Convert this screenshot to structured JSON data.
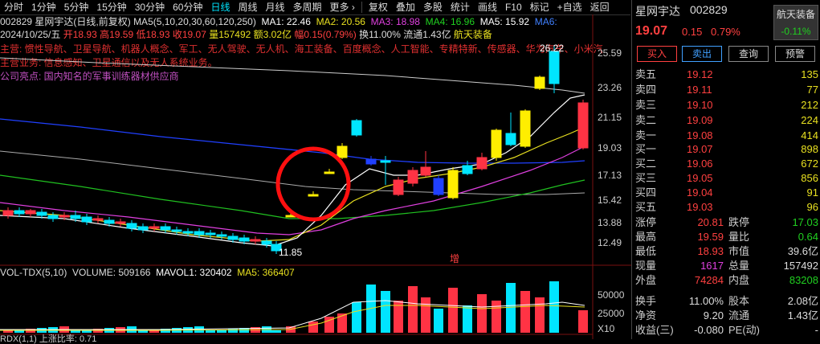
{
  "toolbar": {
    "tabs": [
      "分时",
      "1分钟",
      "5分钟",
      "15分钟",
      "30分钟",
      "60分钟",
      "日线",
      "周线",
      "月线",
      "多周期",
      "更多 ›"
    ],
    "right_tabs": [
      "复权",
      "叠加",
      "多股",
      "统计",
      "画线",
      "F10",
      "标记",
      "+自选",
      "返回"
    ],
    "active": "日线"
  },
  "header": {
    "title": "002829 星网宇达(日线,前复权)",
    "ma_legend": "MA5(5,10,20,30,60,120,250)",
    "ma1": "MA1: 22.46",
    "ma2": "MA2: 20.56",
    "ma3": "MA3: 18.98",
    "ma4": "MA4: 16.96",
    "ma5": "MA5: 15.92",
    "ma6": "MA6:",
    "date": "2024/10/25/五",
    "open": "开18.93",
    "high": "高19.59",
    "low": "低18.93",
    "close": "收19.07",
    "volume": "量157492",
    "amount": "额3.02亿",
    "change": "幅0.15(0.79%)",
    "turnover": "换11.00%",
    "float": "流通1.43亿",
    "sector": "航天装备"
  },
  "notes": {
    "line1": "主营: 惯性导航、卫星导航、机器人概念、军工、无人驾驶、无人机、海工装备、百度概念、人工智能、专精特新、传感器、华为汽车、小米汽",
    "line2": "主营业务: 信息感知、卫星通信以及无人系统业务。",
    "line3": "公司亮点: 国内知名的军事训练器材供应商"
  },
  "price_axis": [
    "25.59",
    "23.26",
    "21.15",
    "19.03",
    "17.13",
    "15.42",
    "13.88",
    "12.49"
  ],
  "chart_labels": {
    "high_mark": "26.22",
    "low_mark": "11.85",
    "zeng": "增"
  },
  "volume_header": {
    "name": "VOL-TDX(5,10)",
    "volume": "VOLUME: 509166",
    "mavol1": "MAVOL1: 320402",
    "ma5": "MA5: 366407"
  },
  "volume_axis": [
    "50000",
    "25000",
    "X10"
  ],
  "bottom_indicator": "RDX(1,1)  上涨比率: 0.71",
  "right_panel": {
    "name": "星网宇达",
    "code": "002829",
    "sector": "航天装备",
    "sector_change": "-0.11%",
    "price": "19.07",
    "change": "0.15",
    "pct": "0.79%",
    "buttons": [
      "买入",
      "卖出",
      "查询",
      "预警"
    ],
    "asks": [
      {
        "label": "卖五",
        "price": "19.12",
        "vol": "135"
      },
      {
        "label": "卖四",
        "price": "19.11",
        "vol": "77"
      },
      {
        "label": "卖三",
        "price": "19.10",
        "vol": "212"
      },
      {
        "label": "卖二",
        "price": "19.09",
        "vol": "224"
      },
      {
        "label": "卖一",
        "price": "19.08",
        "vol": "414"
      }
    ],
    "bids": [
      {
        "label": "买一",
        "price": "19.07",
        "vol": "898"
      },
      {
        "label": "买二",
        "price": "19.06",
        "vol": "672"
      },
      {
        "label": "买三",
        "price": "19.05",
        "vol": "856"
      },
      {
        "label": "买四",
        "price": "19.04",
        "vol": "91"
      },
      {
        "label": "买五",
        "price": "19.03",
        "vol": "96"
      }
    ],
    "stats": [
      {
        "l1": "涨停",
        "v1": "20.81",
        "c1": "#ff4040",
        "l2": "跌停",
        "v2": "17.03",
        "c2": "#20d020"
      },
      {
        "l1": "最高",
        "v1": "19.59",
        "c1": "#ff4040",
        "l2": "量比",
        "v2": "0.64",
        "c2": "#20d020"
      },
      {
        "l1": "最低",
        "v1": "18.93",
        "c1": "#ff4040",
        "l2": "市值",
        "v2": "39.6亿",
        "c2": "#dddddd"
      },
      {
        "l1": "现量",
        "v1": "1617",
        "c1": "#e040e0",
        "l2": "总量",
        "v2": "157492",
        "c2": "#dddddd"
      },
      {
        "l1": "外盘",
        "v1": "74284",
        "c1": "#ff4040",
        "l2": "内盘",
        "v2": "83208",
        "c2": "#20d020"
      }
    ],
    "stats2": [
      {
        "l1": "换手",
        "v1": "11.00%",
        "c1": "#dddddd",
        "l2": "股本",
        "v2": "2.08亿",
        "c2": "#dddddd"
      },
      {
        "l1": "净资",
        "v1": "9.20",
        "c1": "#dddddd",
        "l2": "流通",
        "v2": "1.43亿",
        "c2": "#dddddd"
      },
      {
        "l1": "收益(三)",
        "v1": "-0.080",
        "c1": "#dddddd",
        "l2": "PE(动)",
        "v2": "-",
        "c2": "#dddddd"
      }
    ]
  },
  "colors": {
    "up": "#ff3344",
    "down": "#00e5ff",
    "yellow": "#ffee00",
    "blue": "#2040ff"
  }
}
